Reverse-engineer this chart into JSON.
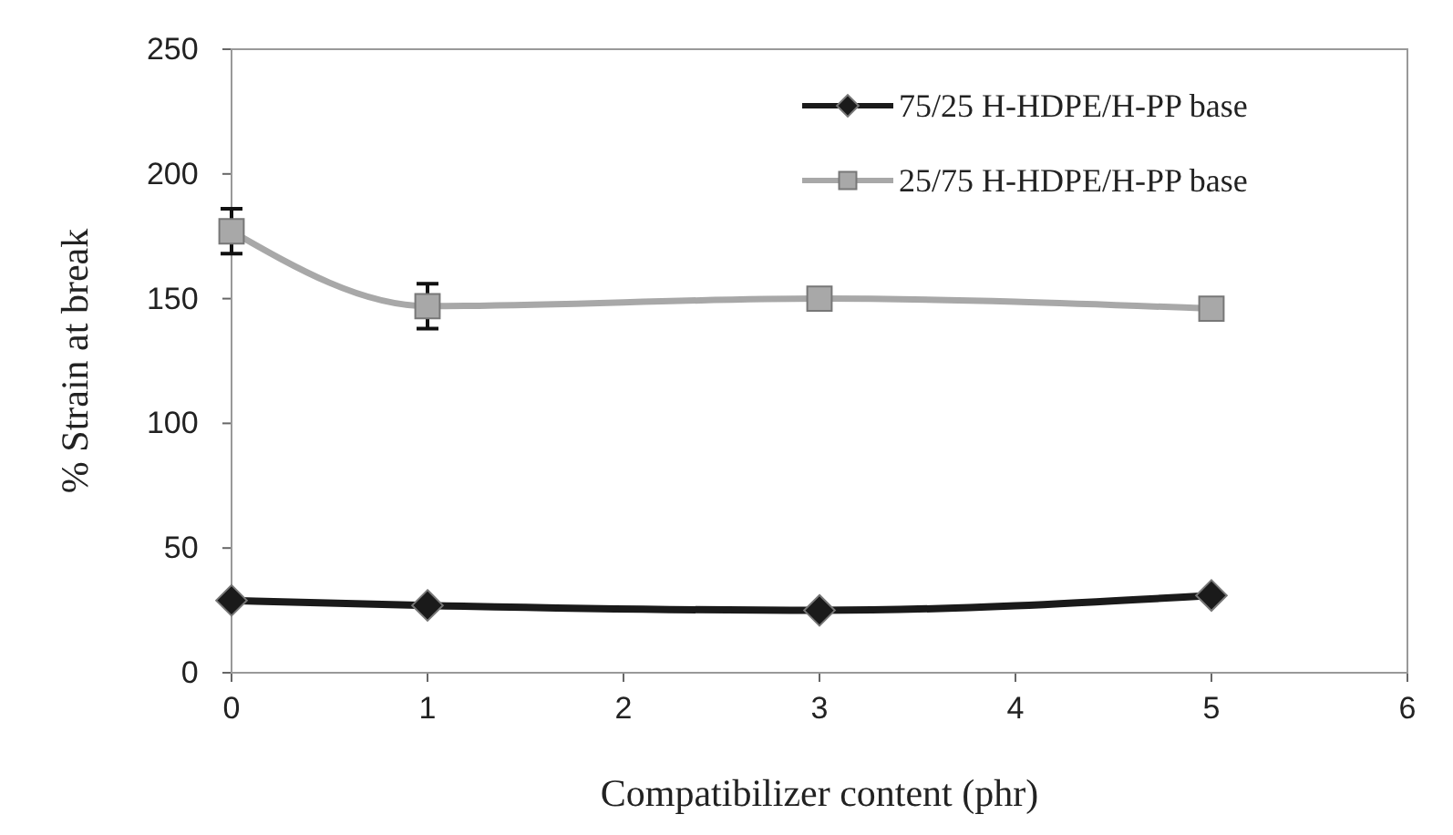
{
  "chart_data": {
    "type": "line",
    "xlabel": "Compatibilizer content (phr)",
    "ylabel": "% Strain at break",
    "xlim": [
      0,
      6
    ],
    "xticks": [
      0,
      1,
      2,
      3,
      4,
      5,
      6
    ],
    "ylim": [
      0,
      250
    ],
    "yticks": [
      0,
      50,
      100,
      150,
      200,
      250
    ],
    "grid": false,
    "legend": "top right",
    "line_style": "solid",
    "series": [
      {
        "name": "75/25 H-HDPE/H-PP base",
        "color": "#1a1a1a",
        "marker": "diamond",
        "x": [
          0,
          1,
          3,
          5
        ],
        "values": [
          29,
          27,
          25,
          31
        ]
      },
      {
        "name": "25/75 H-HDPE/H-PP base",
        "color": "#a8a8a8",
        "marker": "square",
        "x": [
          0,
          1,
          3,
          5
        ],
        "values": [
          177,
          147,
          150,
          146
        ],
        "errors": [
          9,
          9,
          null,
          null
        ]
      }
    ]
  }
}
